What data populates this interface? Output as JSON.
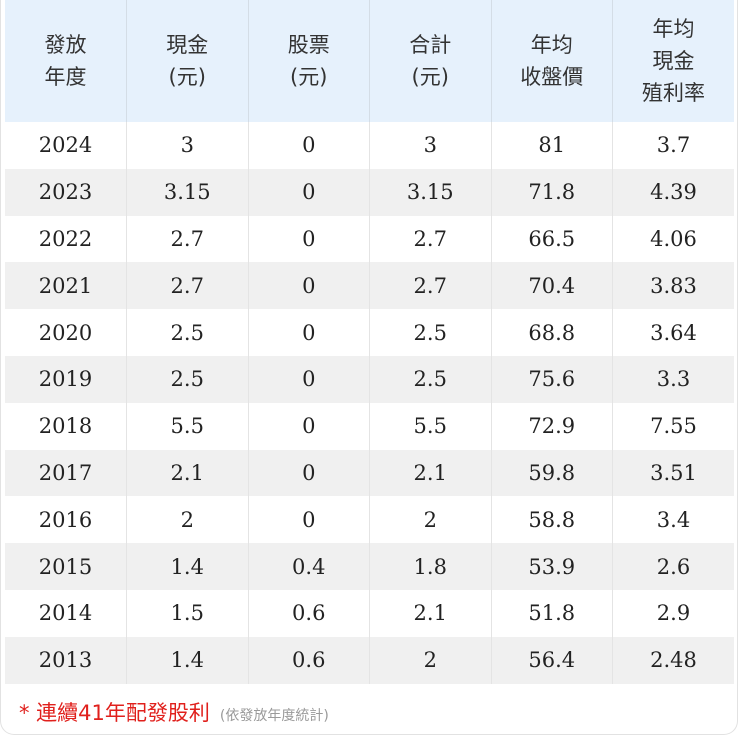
{
  "table": {
    "headers": [
      [
        "發放",
        "年度"
      ],
      [
        "現金",
        "(元)"
      ],
      [
        "股票",
        "(元)"
      ],
      [
        "合計",
        "(元)"
      ],
      [
        "年均",
        "收盤價"
      ],
      [
        "年均",
        "現金",
        "殖利率"
      ]
    ],
    "rows": [
      [
        "2024",
        "3",
        "0",
        "3",
        "81",
        "3.7"
      ],
      [
        "2023",
        "3.15",
        "0",
        "3.15",
        "71.8",
        "4.39"
      ],
      [
        "2022",
        "2.7",
        "0",
        "2.7",
        "66.5",
        "4.06"
      ],
      [
        "2021",
        "2.7",
        "0",
        "2.7",
        "70.4",
        "3.83"
      ],
      [
        "2020",
        "2.5",
        "0",
        "2.5",
        "68.8",
        "3.64"
      ],
      [
        "2019",
        "2.5",
        "0",
        "2.5",
        "75.6",
        "3.3"
      ],
      [
        "2018",
        "5.5",
        "0",
        "5.5",
        "72.9",
        "7.55"
      ],
      [
        "2017",
        "2.1",
        "0",
        "2.1",
        "59.8",
        "3.51"
      ],
      [
        "2016",
        "2",
        "0",
        "2",
        "58.8",
        "3.4"
      ],
      [
        "2015",
        "1.4",
        "0.4",
        "1.8",
        "53.9",
        "2.6"
      ],
      [
        "2014",
        "1.5",
        "0.6",
        "2.1",
        "51.8",
        "2.9"
      ],
      [
        "2013",
        "1.4",
        "0.6",
        "2",
        "56.4",
        "2.48"
      ]
    ]
  },
  "footer": {
    "main": "* 連續41年配發股利",
    "note": "(依發放年度統計)"
  },
  "colors": {
    "header_bg": "#e6f1fc",
    "stripe_bg": "#f0f0f0",
    "footer_accent": "#e0201c",
    "footer_note": "#9a9a9a"
  }
}
